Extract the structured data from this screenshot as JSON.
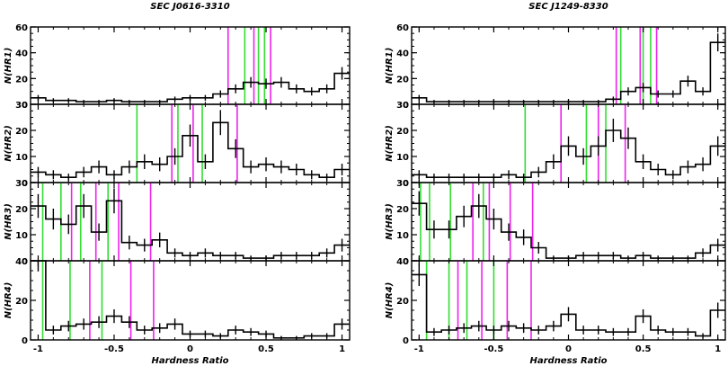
{
  "colors": {
    "green": "#33dd33",
    "magenta": "#ee22ee",
    "histogram": "#000000"
  },
  "panels_y_labels": [
    "N(HR1)",
    "N(HR2)",
    "N(HR3)",
    "N(HR4)"
  ],
  "x_axis_label": "Hardness Ratio",
  "x_tick_labels": [
    "-1",
    "-0.5",
    "0",
    "0.5",
    "1"
  ],
  "chart_data": [
    {
      "type": "bar",
      "title": "SEC J0616-3310",
      "xlabel": "Hardness Ratio",
      "xlim": [
        -1.05,
        1.05
      ],
      "bin_edges": [
        -1.0,
        -0.9,
        -0.8,
        -0.7,
        -0.6,
        -0.5,
        -0.4,
        -0.3,
        -0.2,
        -0.1,
        0.0,
        0.1,
        0.2,
        0.3,
        0.4,
        0.5,
        0.6,
        0.7,
        0.8,
        0.9,
        1.0
      ],
      "panels": [
        {
          "ylabel": "N(HR1)",
          "ylim": [
            0,
            60
          ],
          "yticks": [
            0,
            20,
            40,
            60
          ],
          "ytick_labels": [
            "0",
            "20",
            "40",
            "60"
          ],
          "counts": [
            5,
            3,
            3,
            2,
            2,
            3,
            2,
            2,
            2,
            4,
            5,
            5,
            8,
            12,
            17,
            16,
            17,
            12,
            10,
            12,
            24
          ],
          "green": [
            0.36,
            0.45,
            0.49
          ],
          "magenta": [
            0.25,
            0.42,
            0.53
          ]
        },
        {
          "ylabel": "N(HR2)",
          "ylim": [
            0,
            30
          ],
          "yticks": [
            0,
            10,
            20,
            30
          ],
          "ytick_labels": [
            "0",
            "10",
            "20",
            "30"
          ],
          "counts": [
            4,
            3,
            2,
            4,
            6,
            3,
            6,
            8,
            7,
            10,
            18,
            8,
            23,
            13,
            6,
            7,
            6,
            5,
            3,
            2,
            5
          ],
          "green": [
            -0.35,
            -0.08,
            0.08
          ],
          "magenta": [
            -0.12,
            0.02,
            0.31
          ]
        },
        {
          "ylabel": "N(HR3)",
          "ylim": [
            0,
            30
          ],
          "yticks": [
            0,
            10,
            20,
            30
          ],
          "ytick_labels": [
            "0",
            "10",
            "20",
            "30"
          ],
          "counts": [
            21,
            16,
            14,
            21,
            11,
            23,
            7,
            6,
            8,
            3,
            2,
            3,
            2,
            2,
            1,
            1,
            2,
            2,
            2,
            3,
            6
          ],
          "green": [
            -0.97,
            -0.85,
            -0.72,
            -0.54
          ],
          "magenta": [
            -0.78,
            -0.62,
            -0.47,
            -0.26
          ]
        },
        {
          "ylabel": "N(HR4)",
          "ylim": [
            0,
            40
          ],
          "yticks": [
            0,
            20,
            40
          ],
          "ytick_labels": [
            "0",
            "20",
            "40"
          ],
          "counts": [
            41,
            5,
            7,
            8,
            9,
            12,
            9,
            5,
            6,
            8,
            3,
            3,
            2,
            5,
            4,
            3,
            1,
            1,
            2,
            2,
            8
          ],
          "green": [
            -0.97,
            -0.79,
            -0.58
          ],
          "magenta": [
            -0.66,
            -0.39,
            -0.24
          ]
        }
      ]
    },
    {
      "type": "bar",
      "title": "SEC J1249-8330",
      "xlabel": "Hardness Ratio",
      "xlim": [
        -1.05,
        1.05
      ],
      "bin_edges": [
        -1.0,
        -0.9,
        -0.8,
        -0.7,
        -0.6,
        -0.5,
        -0.4,
        -0.3,
        -0.2,
        -0.1,
        0.0,
        0.1,
        0.2,
        0.3,
        0.4,
        0.5,
        0.6,
        0.7,
        0.8,
        0.9,
        1.0
      ],
      "panels": [
        {
          "ylabel": "N(HR1)",
          "ylim": [
            0,
            60
          ],
          "yticks": [
            0,
            20,
            40,
            60
          ],
          "ytick_labels": [
            "0",
            "20",
            "40",
            "60"
          ],
          "counts": [
            5,
            2,
            2,
            2,
            2,
            2,
            2,
            2,
            2,
            2,
            2,
            2,
            2,
            4,
            10,
            13,
            8,
            8,
            18,
            10,
            48
          ],
          "green": [
            0.35,
            0.5,
            0.55
          ],
          "magenta": [
            0.32,
            0.48,
            0.59
          ]
        },
        {
          "ylabel": "N(HR2)",
          "ylim": [
            0,
            30
          ],
          "yticks": [
            0,
            10,
            20,
            30
          ],
          "ytick_labels": [
            "0",
            "10",
            "20",
            "30"
          ],
          "counts": [
            3,
            2,
            2,
            2,
            2,
            2,
            3,
            2,
            4,
            8,
            14,
            10,
            14,
            20,
            17,
            8,
            5,
            3,
            6,
            7,
            14
          ],
          "green": [
            -0.29,
            0.12,
            0.25
          ],
          "magenta": [
            -0.05,
            0.2,
            0.38
          ]
        },
        {
          "ylabel": "N(HR3)",
          "ylim": [
            0,
            30
          ],
          "yticks": [
            0,
            10,
            20,
            30
          ],
          "ytick_labels": [
            "0",
            "10",
            "20",
            "30"
          ],
          "counts": [
            22,
            12,
            12,
            17,
            21,
            16,
            11,
            9,
            5,
            1,
            1,
            2,
            2,
            2,
            1,
            2,
            1,
            1,
            1,
            3,
            6
          ],
          "green": [
            -0.99,
            -0.93,
            -0.79,
            -0.57
          ],
          "magenta": [
            -0.64,
            -0.53,
            -0.39,
            -0.24
          ]
        },
        {
          "ylabel": "N(HR4)",
          "ylim": [
            0,
            40
          ],
          "yticks": [
            0,
            20,
            40
          ],
          "ytick_labels": [
            "0",
            "20",
            "40"
          ],
          "counts": [
            33,
            4,
            5,
            6,
            7,
            5,
            7,
            6,
            5,
            7,
            13,
            5,
            5,
            4,
            4,
            12,
            5,
            4,
            4,
            2,
            15
          ],
          "green": [
            -0.95,
            -0.8,
            -0.68,
            -0.5
          ],
          "magenta": [
            -0.74,
            -0.58,
            -0.41,
            -0.25
          ]
        }
      ]
    }
  ]
}
